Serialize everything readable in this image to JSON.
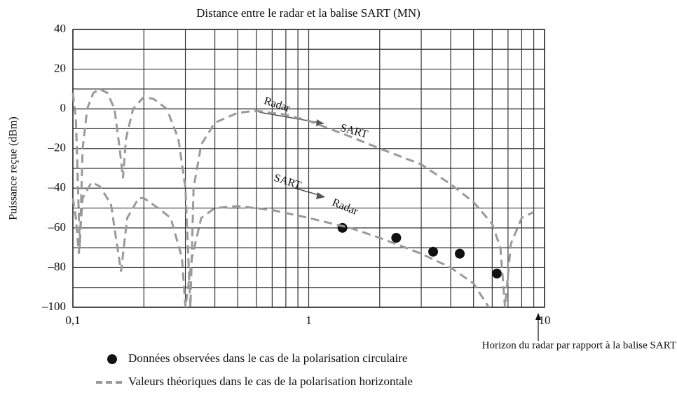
{
  "chart_data": {
    "type": "line",
    "title": "Distance entre le radar et la balise SART (MN)",
    "y_label": "Puissance reçue (dBm)",
    "xscale": "log",
    "xlim": [
      0.1,
      10
    ],
    "xticks": [
      {
        "value": 0.1,
        "label": "0,1"
      },
      1,
      10
    ],
    "x_minor_ticks": [
      0.2,
      0.3,
      0.4,
      0.5,
      0.6,
      0.7,
      0.8,
      0.9,
      2,
      3,
      4,
      5,
      6,
      7,
      8,
      9
    ],
    "ylim": [
      -100,
      40
    ],
    "yticks": [
      {
        "value": -100,
        "label": "–100"
      },
      {
        "value": -80,
        "label": "–80"
      },
      {
        "value": -60,
        "label": "–60"
      },
      {
        "value": -40,
        "label": "–40"
      },
      {
        "value": -20,
        "label": "–20"
      },
      0,
      20,
      40
    ],
    "y_minor_ticks": [
      -90,
      -70,
      -50,
      -30,
      -10,
      10,
      30
    ],
    "grid": true,
    "series": [
      {
        "name": "Données observées dans le cas de la polarisation circulaire",
        "style": "marker",
        "color": "#111111",
        "x": [
          1.39,
          2.35,
          3.37,
          4.37,
          6.28
        ],
        "values": [
          -60,
          -65,
          -72,
          -73,
          -83
        ]
      },
      {
        "name": "Valeurs théoriques dans le cas de la polarisation horizontale",
        "style": "dashed",
        "color": "#9a9a9a",
        "x": [
          0.1,
          0.103,
          0.107,
          0.11,
          0.115,
          0.122,
          0.13,
          0.14,
          0.15,
          0.158,
          0.163,
          0.168,
          0.18,
          0.2,
          0.22,
          0.25,
          0.28,
          0.3,
          0.315,
          0.325,
          0.35,
          0.4,
          0.5,
          0.6,
          0.8,
          1,
          1.5,
          2,
          3,
          4,
          5,
          6,
          6.5,
          6.8,
          7.2,
          8,
          9
        ],
        "values": [
          8,
          -5,
          -70,
          -20,
          0,
          8,
          10,
          8,
          0,
          -20,
          -35,
          -15,
          0,
          6,
          5,
          0,
          -15,
          -40,
          -100,
          -40,
          -18,
          -7,
          -2,
          -1,
          -3,
          -6,
          -14,
          -20,
          -28,
          -38,
          -47,
          -58,
          -70,
          -100,
          -68,
          -55,
          -52
        ]
      },
      {
        "style": "dashed",
        "color": "#9a9a9a",
        "x": [
          0.1,
          0.103,
          0.106,
          0.11,
          0.12,
          0.13,
          0.145,
          0.16,
          0.17,
          0.19,
          0.2,
          0.23,
          0.26,
          0.29,
          0.3,
          0.32,
          0.35,
          0.4,
          0.5,
          0.7,
          1,
          1.5,
          2,
          3,
          4,
          5,
          5.8
        ],
        "values": [
          -45,
          -55,
          -73,
          -45,
          -37,
          -39,
          -48,
          -82,
          -55,
          -45,
          -45,
          -50,
          -55,
          -75,
          -100,
          -75,
          -55,
          -50,
          -49,
          -51,
          -55,
          -60,
          -65,
          -73,
          -80,
          -88,
          -100
        ]
      }
    ],
    "annotations": [
      "Radar",
      "SART",
      "SART",
      "Radar",
      "Horizon du radar par rapport à la balise SART"
    ]
  }
}
